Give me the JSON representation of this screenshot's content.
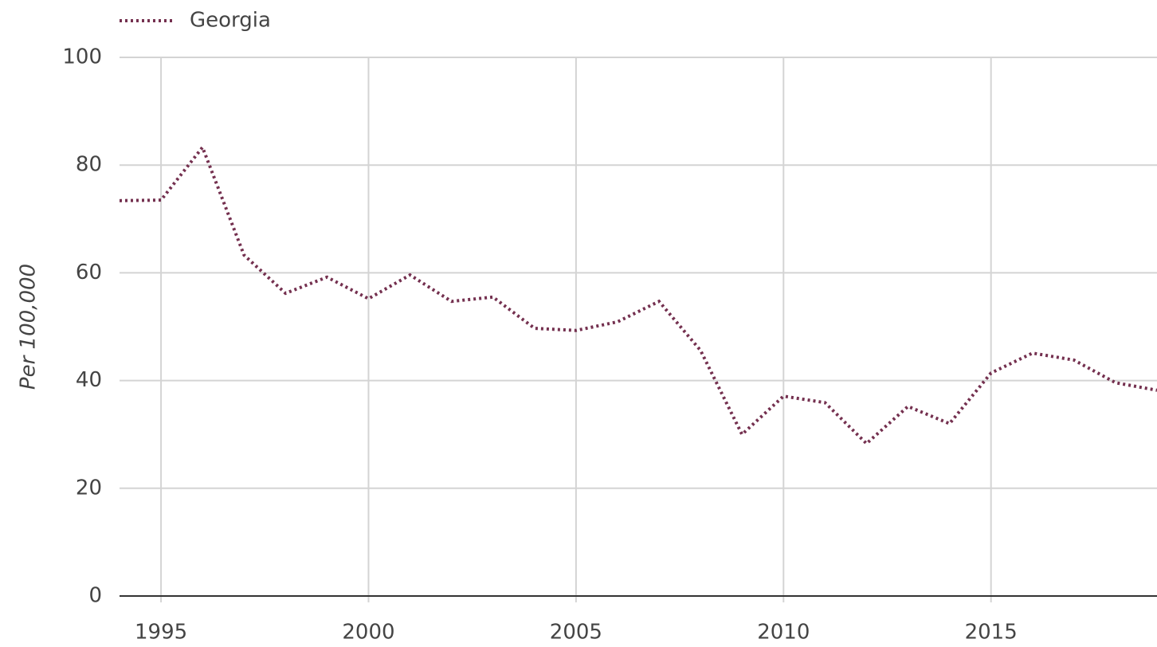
{
  "chart_data": {
    "type": "line",
    "y_label": "Per 100,000",
    "x": [
      1994,
      1995,
      1996,
      1997,
      1998,
      1999,
      2000,
      2001,
      2002,
      2003,
      2004,
      2005,
      2006,
      2007,
      2008,
      2009,
      2010,
      2011,
      2012,
      2013,
      2014,
      2015,
      2016,
      2017,
      2018,
      2019
    ],
    "series": [
      {
        "name": "Georgia",
        "color": "#74304f",
        "values": [
          73.4,
          73.5,
          83.3,
          63.3,
          56.2,
          59.2,
          55.2,
          59.6,
          54.7,
          55.5,
          49.7,
          49.3,
          50.9,
          54.7,
          45.6,
          30.0,
          37.1,
          35.9,
          28.3,
          35.2,
          32.0,
          41.4,
          45.1,
          43.8,
          39.6,
          38.2
        ]
      }
    ],
    "xlim": [
      1994,
      2019
    ],
    "xticks": [
      1995,
      2000,
      2005,
      2010,
      2015
    ],
    "ylim": [
      0,
      100
    ],
    "yticks": [
      0,
      20,
      40,
      60,
      80,
      100
    ],
    "grid": true,
    "line_style": "dotted",
    "legend": "top-left"
  }
}
